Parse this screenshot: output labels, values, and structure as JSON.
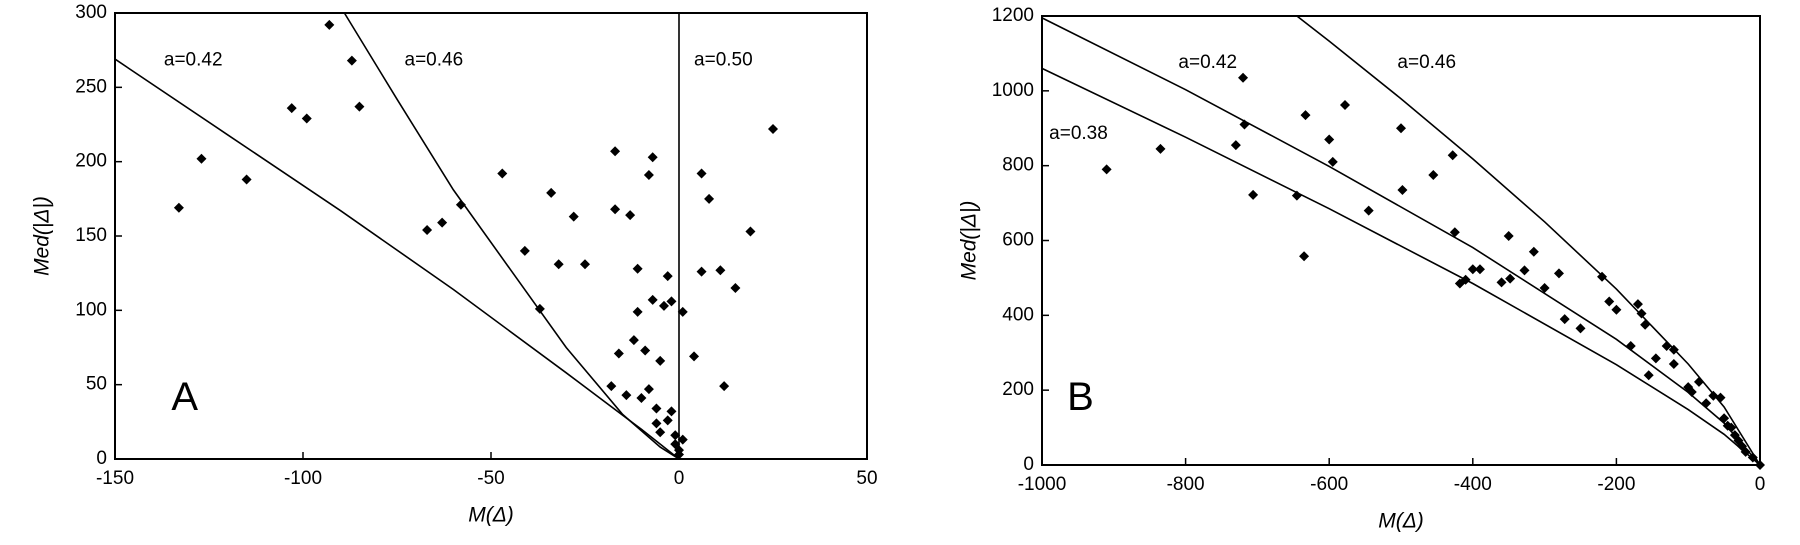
{
  "chart_data": [
    {
      "type": "scatter",
      "panel_label": "A",
      "x_label": "M(Δ)",
      "y_label": "Med(|Δ|)",
      "xlim": [
        -150,
        50
      ],
      "xticks": [
        -150,
        -100,
        -50,
        0,
        50
      ],
      "ylim": [
        0,
        300
      ],
      "yticks": [
        0,
        50,
        100,
        150,
        200,
        250,
        300
      ],
      "color": "#000000",
      "x": [
        -133,
        -127,
        -115,
        -103,
        -99,
        -93,
        -87,
        -85,
        -67,
        -63,
        -58,
        -47,
        -41,
        -37,
        -34,
        -32,
        -28,
        -25,
        -18,
        -17,
        -17,
        -16,
        -14,
        -13,
        -12,
        -11,
        -11,
        -10,
        -9,
        -8,
        -8,
        -7,
        -7,
        -6,
        -6,
        -5,
        -5,
        -4,
        -3,
        -3,
        -2,
        -2,
        -1,
        -1,
        0,
        0,
        1,
        1,
        4,
        6,
        6,
        8,
        11,
        12,
        15,
        19,
        25
      ],
      "values": [
        169,
        202,
        188,
        236,
        229,
        292,
        268,
        237,
        154,
        159,
        171,
        192,
        140,
        101,
        179,
        131,
        163,
        131,
        49,
        207,
        168,
        71,
        43,
        164,
        80,
        128,
        99,
        41,
        73,
        47,
        191,
        203,
        107,
        24,
        34,
        66,
        18,
        103,
        26,
        123,
        106,
        32,
        16,
        10,
        6,
        3,
        13,
        99,
        69,
        126,
        192,
        175,
        127,
        49,
        115,
        153,
        222
      ],
      "curves": [
        {
          "name": "a=0.42",
          "x": [
            -150,
            -120,
            -90,
            -60,
            -30,
            -10,
            0
          ],
          "values": [
            269,
            218,
            167,
            114,
            58,
            20,
            0
          ]
        },
        {
          "name": "a=0.46",
          "x": [
            -89,
            -75,
            -60,
            -45,
            -30,
            -15,
            -5,
            0
          ],
          "values": [
            300,
            242,
            181,
            128,
            75,
            30,
            8,
            0
          ]
        },
        {
          "name": "a=0.50",
          "x": [
            0,
            0
          ],
          "values": [
            0,
            300
          ]
        }
      ]
    },
    {
      "type": "scatter",
      "panel_label": "B",
      "x_label": "M(Δ)",
      "y_label": "Med(|Δ|)",
      "xlim": [
        -1000,
        0
      ],
      "xticks": [
        -1000,
        -800,
        -600,
        -400,
        -200,
        0
      ],
      "ylim": [
        0,
        1200
      ],
      "yticks": [
        0,
        200,
        400,
        600,
        800,
        1000,
        1200
      ],
      "color": "#000000",
      "x": [
        -910,
        -835,
        -730,
        -720,
        -718,
        -706,
        -645,
        -633,
        -635,
        -600,
        -595,
        -578,
        -545,
        -500,
        -498,
        -455,
        -428,
        -425,
        -418,
        -410,
        -400,
        -390,
        -360,
        -350,
        -348,
        -328,
        -315,
        -300,
        -280,
        -272,
        -250,
        -220,
        -210,
        -200,
        -180,
        -170,
        -165,
        -160,
        -155,
        -145,
        -130,
        -120,
        -120,
        -100,
        -95,
        -85,
        -75,
        -65,
        -55,
        -50,
        -45,
        -40,
        -35,
        -30,
        -25,
        -20,
        -10,
        0
      ],
      "values": [
        790,
        845,
        855,
        1035,
        910,
        722,
        720,
        935,
        558,
        870,
        810,
        962,
        680,
        900,
        735,
        775,
        828,
        622,
        485,
        495,
        523,
        523,
        488,
        612,
        498,
        520,
        570,
        473,
        512,
        390,
        365,
        503,
        437,
        415,
        318,
        430,
        405,
        375,
        240,
        285,
        318,
        308,
        270,
        208,
        195,
        222,
        165,
        185,
        180,
        125,
        105,
        100,
        80,
        65,
        50,
        35,
        20,
        0
      ],
      "curves": [
        {
          "name": "a=0.42",
          "x": [
            -1000,
            -800,
            -600,
            -400,
            -200,
            -100,
            -50,
            0
          ],
          "values": [
            1195,
            1003,
            798,
            581,
            336,
            194,
            112,
            0
          ]
        },
        {
          "name": "a=0.46",
          "x": [
            -645,
            -600,
            -500,
            -400,
            -300,
            -200,
            -100,
            -50,
            0
          ],
          "values": [
            1200,
            1133,
            979,
            818,
            650,
            470,
            270,
            155,
            0
          ]
        },
        {
          "name": "a=0.38",
          "x": [
            -1000,
            -800,
            -600,
            -400,
            -200,
            -100,
            -50,
            0
          ],
          "values": [
            1060,
            876,
            685,
            485,
            268,
            148,
            82,
            0
          ]
        }
      ]
    }
  ]
}
